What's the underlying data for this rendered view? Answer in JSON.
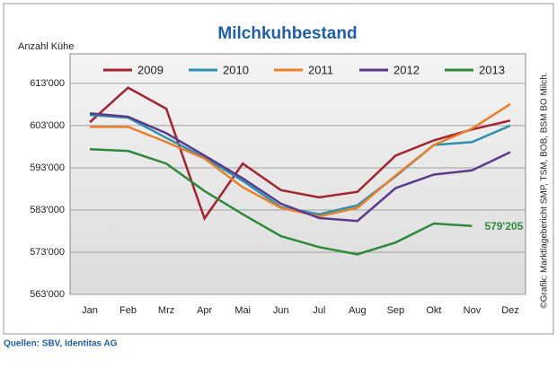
{
  "chart_data": {
    "type": "line",
    "title": "Milchkuhbestand",
    "y_label": "Anzahl Kühe",
    "source": "Quellen: SBV, Identitas AG",
    "credit": "©Grafik: Marktlagebericht SMP, TSM, BOB, BSM BO Milch.",
    "categories": [
      "Jan",
      "Feb",
      "Mrz",
      "Apr",
      "Mai",
      "Jun",
      "Jul",
      "Aug",
      "Sep",
      "Okt",
      "Nov",
      "Dez"
    ],
    "series": [
      {
        "name": "2009",
        "color": "#a3232e",
        "values": [
          603800,
          612000,
          607000,
          581000,
          594000,
          587700,
          586000,
          587300,
          595900,
          599500,
          602100,
          604200
        ]
      },
      {
        "name": "2010",
        "color": "#2e8fb0",
        "values": [
          605500,
          604900,
          600100,
          595400,
          589900,
          583700,
          582000,
          584100,
          591000,
          598400,
          599100,
          603000
        ]
      },
      {
        "name": "2011",
        "color": "#e8802a",
        "values": [
          602700,
          602700,
          599100,
          595200,
          588400,
          583500,
          581500,
          583500,
          591200,
          598400,
          602300,
          608100
        ]
      },
      {
        "name": "2012",
        "color": "#5b3b8c",
        "values": [
          605900,
          605100,
          601200,
          595900,
          590500,
          584500,
          581100,
          580400,
          588200,
          591400,
          592400,
          596700
        ]
      },
      {
        "name": "2013",
        "color": "#2e8a3a",
        "values": [
          597400,
          597000,
          594000,
          587500,
          582000,
          576800,
          574200,
          572500,
          575300,
          579800,
          579205,
          null
        ],
        "value_labels": [
          null,
          null,
          null,
          null,
          null,
          null,
          null,
          null,
          null,
          null,
          "579'205",
          null
        ]
      }
    ],
    "ylim": [
      563000,
      620000
    ],
    "yticks": [
      {
        "value": 563000,
        "label": "563'000"
      },
      {
        "value": 573000,
        "label": "573'000"
      },
      {
        "value": 583000,
        "label": "583'000"
      },
      {
        "value": 593000,
        "label": "593'000"
      },
      {
        "value": 603000,
        "label": "603'000"
      },
      {
        "value": 613000,
        "label": "613'000"
      }
    ],
    "grid": true
  }
}
